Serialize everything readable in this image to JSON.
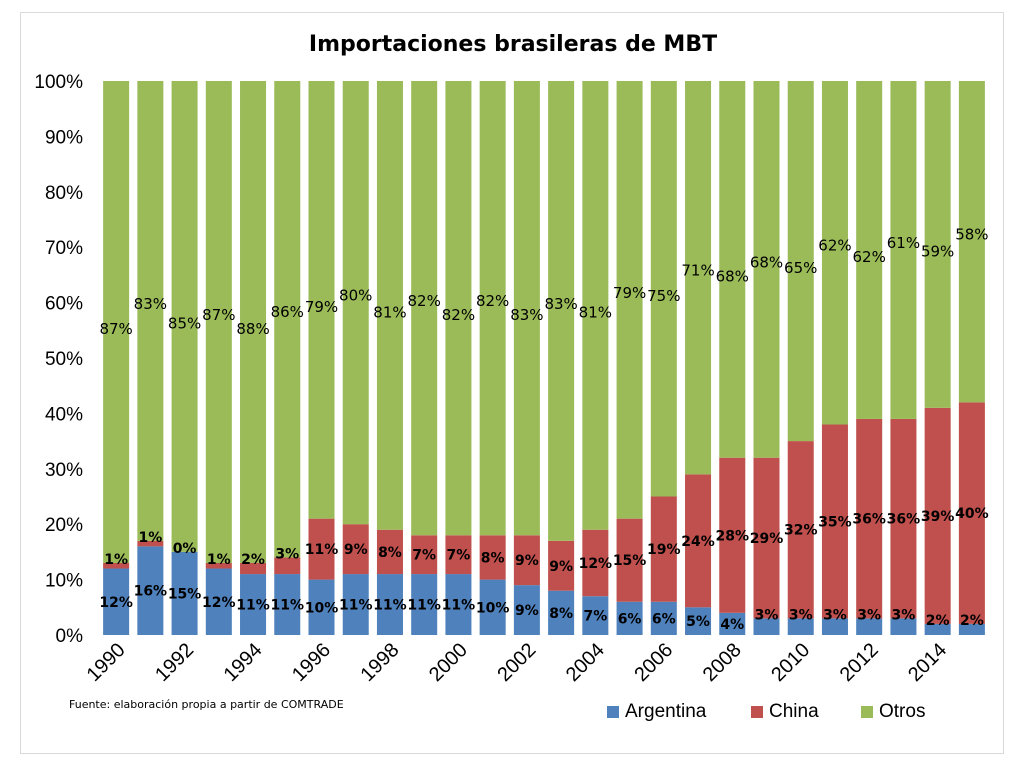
{
  "chart_data": {
    "type": "bar",
    "stacked": true,
    "title": "Importaciones brasileras de MBT",
    "source_note": "Fuente: elaboración propia a partir de COMTRADE",
    "ylim": [
      0,
      100
    ],
    "y_ticks": [
      "0%",
      "10%",
      "20%",
      "30%",
      "40%",
      "50%",
      "60%",
      "70%",
      "80%",
      "90%",
      "100%"
    ],
    "grid": false,
    "legend_position": "bottom-right",
    "categories": [
      "1990",
      "1991",
      "1992",
      "1993",
      "1994",
      "1995",
      "1996",
      "1997",
      "1998",
      "1999",
      "2000",
      "2001",
      "2002",
      "2003",
      "2004",
      "2005",
      "2006",
      "2007",
      "2008",
      "2009",
      "2010",
      "2011",
      "2012",
      "2013",
      "2014",
      "2015"
    ],
    "x_tick_labels": [
      "1990",
      "1992",
      "1994",
      "1996",
      "1998",
      "2000",
      "2002",
      "2004",
      "2006",
      "2008",
      "2010",
      "2012",
      "2014"
    ],
    "series": [
      {
        "name": "Argentina",
        "color": "#4f81bd",
        "values": [
          12,
          16,
          15,
          12,
          11,
          11,
          10,
          11,
          11,
          11,
          11,
          10,
          9,
          8,
          7,
          6,
          6,
          5,
          4,
          3,
          3,
          3,
          3,
          3,
          2,
          2
        ],
        "labels": [
          "12%",
          "16%",
          "15%",
          "12%",
          "11%",
          "11%",
          "10%",
          "11%",
          "11%",
          "11%",
          "11%",
          "10%",
          "9%",
          "8%",
          "7%",
          "6%",
          "6%",
          "5%",
          "4%",
          "3%",
          "3%",
          "3%",
          "3%",
          "3%",
          "2%",
          "2%"
        ]
      },
      {
        "name": "China",
        "color": "#c0504d",
        "values": [
          1,
          1,
          0,
          1,
          2,
          3,
          11,
          9,
          8,
          7,
          7,
          8,
          9,
          9,
          12,
          15,
          19,
          24,
          28,
          29,
          32,
          35,
          36,
          36,
          39,
          40
        ],
        "labels": [
          "1%",
          "1%",
          "0%",
          "1%",
          "2%",
          "3%",
          "11%",
          "9%",
          "8%",
          "7%",
          "7%",
          "8%",
          "9%",
          "9%",
          "12%",
          "15%",
          "19%",
          "24%",
          "28%",
          "29%",
          "32%",
          "35%",
          "36%",
          "36%",
          "39%",
          "40%"
        ]
      },
      {
        "name": "Otros",
        "color": "#9bbb59",
        "values": [
          87,
          83,
          85,
          87,
          88,
          86,
          79,
          80,
          81,
          82,
          82,
          82,
          83,
          83,
          81,
          79,
          75,
          71,
          68,
          68,
          65,
          62,
          62,
          61,
          59,
          58
        ],
        "labels": [
          "87%",
          "83%",
          "85%",
          "87%",
          "88%",
          "86%",
          "79%",
          "80%",
          "81%",
          "82%",
          "82%",
          "82%",
          "83%",
          "83%",
          "81%",
          "79%",
          "75%",
          "71%",
          "68%",
          "68%",
          "65%",
          "62%",
          "62%",
          "61%",
          "59%",
          "58%"
        ]
      }
    ]
  }
}
